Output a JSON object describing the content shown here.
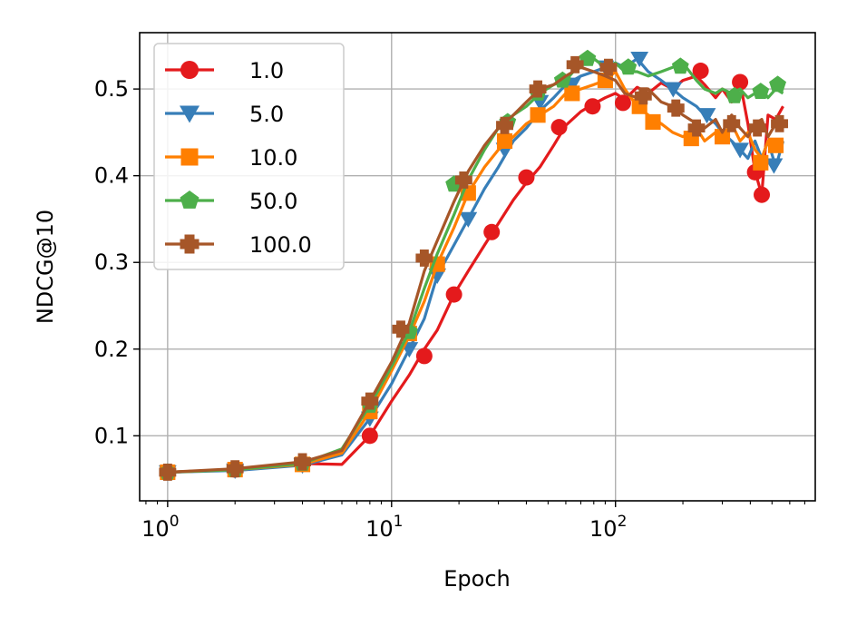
{
  "chart_data": {
    "type": "line",
    "xlabel": "Epoch",
    "ylabel": "NDCG@10",
    "xscale": "log",
    "xlim": [
      0.75,
      780
    ],
    "ylim": [
      0.025,
      0.565
    ],
    "x_ticks": [
      {
        "value": 1,
        "base": "10",
        "exp": "0"
      },
      {
        "value": 10,
        "base": "10",
        "exp": "1"
      },
      {
        "value": 100,
        "base": "10",
        "exp": "2"
      }
    ],
    "y_ticks": [
      {
        "value": 0.1,
        "label": "0.1"
      },
      {
        "value": 0.2,
        "label": "0.2"
      },
      {
        "value": 0.3,
        "label": "0.3"
      },
      {
        "value": 0.4,
        "label": "0.4"
      },
      {
        "value": 0.5,
        "label": "0.5"
      }
    ],
    "grid": true,
    "legend_position": "top-left",
    "series": [
      {
        "name": "1.0",
        "color": "#e41a1c",
        "marker": "circle",
        "points": [
          [
            1,
            0.058
          ],
          [
            2,
            0.061
          ],
          [
            4,
            0.068
          ],
          [
            6,
            0.067
          ],
          [
            8,
            0.1
          ],
          [
            10,
            0.14
          ],
          [
            12,
            0.17
          ],
          [
            14,
            0.2
          ],
          [
            16,
            0.222
          ],
          [
            19,
            0.263
          ],
          [
            22,
            0.29
          ],
          [
            26,
            0.32
          ],
          [
            30,
            0.345
          ],
          [
            35,
            0.372
          ],
          [
            40,
            0.392
          ],
          [
            46,
            0.41
          ],
          [
            53,
            0.435
          ],
          [
            60,
            0.458
          ],
          [
            70,
            0.474
          ],
          [
            80,
            0.483
          ],
          [
            90,
            0.49
          ],
          [
            100,
            0.495
          ],
          [
            110,
            0.488
          ],
          [
            125,
            0.502
          ],
          [
            140,
            0.495
          ],
          [
            160,
            0.507
          ],
          [
            180,
            0.5
          ],
          [
            200,
            0.51
          ],
          [
            230,
            0.515
          ],
          [
            250,
            0.505
          ],
          [
            280,
            0.49
          ],
          [
            300,
            0.5
          ],
          [
            330,
            0.485
          ],
          [
            360,
            0.508
          ],
          [
            390,
            0.46
          ],
          [
            420,
            0.405
          ],
          [
            450,
            0.378
          ],
          [
            480,
            0.47
          ],
          [
            520,
            0.465
          ],
          [
            560,
            0.48
          ]
        ],
        "marked": [
          [
            1,
            0.058
          ],
          [
            2,
            0.061
          ],
          [
            4,
            0.068
          ],
          [
            8,
            0.1
          ],
          [
            14,
            0.192
          ],
          [
            19,
            0.263
          ],
          [
            28,
            0.335
          ],
          [
            40,
            0.398
          ],
          [
            56,
            0.456
          ],
          [
            79,
            0.48
          ],
          [
            108,
            0.484
          ],
          [
            240,
            0.521
          ],
          [
            360,
            0.508
          ],
          [
            420,
            0.404
          ],
          [
            450,
            0.378
          ]
        ]
      },
      {
        "name": "5.0",
        "color": "#377eb8",
        "marker": "triangle-down",
        "points": [
          [
            1,
            0.058
          ],
          [
            2,
            0.06
          ],
          [
            4,
            0.066
          ],
          [
            6,
            0.078
          ],
          [
            8,
            0.12
          ],
          [
            10,
            0.16
          ],
          [
            12,
            0.2
          ],
          [
            14,
            0.235
          ],
          [
            16,
            0.285
          ],
          [
            19,
            0.32
          ],
          [
            22,
            0.35
          ],
          [
            26,
            0.385
          ],
          [
            30,
            0.41
          ],
          [
            35,
            0.44
          ],
          [
            40,
            0.455
          ],
          [
            46,
            0.475
          ],
          [
            53,
            0.49
          ],
          [
            60,
            0.505
          ],
          [
            70,
            0.515
          ],
          [
            80,
            0.52
          ],
          [
            90,
            0.525
          ],
          [
            100,
            0.53
          ],
          [
            110,
            0.525
          ],
          [
            125,
            0.535
          ],
          [
            140,
            0.52
          ],
          [
            160,
            0.51
          ],
          [
            180,
            0.5
          ],
          [
            200,
            0.49
          ],
          [
            230,
            0.48
          ],
          [
            250,
            0.47
          ],
          [
            280,
            0.46
          ],
          [
            300,
            0.45
          ],
          [
            330,
            0.44
          ],
          [
            360,
            0.43
          ],
          [
            390,
            0.42
          ],
          [
            420,
            0.44
          ],
          [
            450,
            0.42
          ],
          [
            480,
            0.44
          ],
          [
            520,
            0.41
          ],
          [
            560,
            0.44
          ]
        ],
        "marked": [
          [
            1,
            0.058
          ],
          [
            2,
            0.06
          ],
          [
            4,
            0.066
          ],
          [
            8,
            0.12
          ],
          [
            12,
            0.2
          ],
          [
            16,
            0.285
          ],
          [
            22,
            0.35
          ],
          [
            32,
            0.43
          ],
          [
            46,
            0.485
          ],
          [
            64,
            0.505
          ],
          [
            90,
            0.525
          ],
          [
            128,
            0.535
          ],
          [
            181,
            0.5
          ],
          [
            256,
            0.47
          ],
          [
            360,
            0.43
          ],
          [
            510,
            0.412
          ]
        ]
      },
      {
        "name": "10.0",
        "color": "#ff7f00",
        "marker": "square",
        "points": [
          [
            1,
            0.058
          ],
          [
            2,
            0.061
          ],
          [
            4,
            0.067
          ],
          [
            6,
            0.08
          ],
          [
            8,
            0.128
          ],
          [
            10,
            0.175
          ],
          [
            12,
            0.215
          ],
          [
            14,
            0.255
          ],
          [
            16,
            0.298
          ],
          [
            19,
            0.34
          ],
          [
            22,
            0.38
          ],
          [
            26,
            0.41
          ],
          [
            30,
            0.43
          ],
          [
            35,
            0.445
          ],
          [
            40,
            0.46
          ],
          [
            46,
            0.47
          ],
          [
            53,
            0.48
          ],
          [
            60,
            0.495
          ],
          [
            70,
            0.5
          ],
          [
            80,
            0.505
          ],
          [
            90,
            0.51
          ],
          [
            100,
            0.52
          ],
          [
            110,
            0.5
          ],
          [
            125,
            0.48
          ],
          [
            140,
            0.47
          ],
          [
            160,
            0.46
          ],
          [
            180,
            0.45
          ],
          [
            200,
            0.445
          ],
          [
            230,
            0.455
          ],
          [
            250,
            0.44
          ],
          [
            280,
            0.45
          ],
          [
            300,
            0.445
          ],
          [
            330,
            0.46
          ],
          [
            360,
            0.44
          ],
          [
            390,
            0.45
          ],
          [
            420,
            0.43
          ],
          [
            450,
            0.42
          ],
          [
            480,
            0.44
          ],
          [
            520,
            0.43
          ],
          [
            560,
            0.44
          ]
        ],
        "marked": [
          [
            1,
            0.058
          ],
          [
            2,
            0.061
          ],
          [
            4,
            0.067
          ],
          [
            8,
            0.128
          ],
          [
            12,
            0.218
          ],
          [
            16,
            0.298
          ],
          [
            22,
            0.38
          ],
          [
            32,
            0.44
          ],
          [
            45,
            0.47
          ],
          [
            64,
            0.495
          ],
          [
            90,
            0.51
          ],
          [
            128,
            0.48
          ],
          [
            147,
            0.462
          ],
          [
            218,
            0.443
          ],
          [
            300,
            0.445
          ],
          [
            445,
            0.415
          ],
          [
            520,
            0.435
          ]
        ]
      },
      {
        "name": "50.0",
        "color": "#4daf4a",
        "marker": "pentagon",
        "points": [
          [
            1,
            0.058
          ],
          [
            2,
            0.061
          ],
          [
            4,
            0.068
          ],
          [
            6,
            0.085
          ],
          [
            8,
            0.135
          ],
          [
            10,
            0.18
          ],
          [
            12,
            0.22
          ],
          [
            14,
            0.27
          ],
          [
            16,
            0.31
          ],
          [
            19,
            0.355
          ],
          [
            22,
            0.395
          ],
          [
            26,
            0.43
          ],
          [
            30,
            0.455
          ],
          [
            35,
            0.47
          ],
          [
            40,
            0.48
          ],
          [
            46,
            0.495
          ],
          [
            53,
            0.505
          ],
          [
            60,
            0.51
          ],
          [
            70,
            0.53
          ],
          [
            80,
            0.535
          ],
          [
            90,
            0.525
          ],
          [
            100,
            0.53
          ],
          [
            110,
            0.52
          ],
          [
            125,
            0.52
          ],
          [
            140,
            0.515
          ],
          [
            160,
            0.52
          ],
          [
            180,
            0.525
          ],
          [
            200,
            0.53
          ],
          [
            230,
            0.51
          ],
          [
            250,
            0.5
          ],
          [
            280,
            0.495
          ],
          [
            300,
            0.5
          ],
          [
            330,
            0.495
          ],
          [
            360,
            0.5
          ],
          [
            390,
            0.49
          ],
          [
            420,
            0.495
          ],
          [
            450,
            0.5
          ],
          [
            480,
            0.49
          ],
          [
            520,
            0.5
          ],
          [
            560,
            0.495
          ]
        ],
        "marked": [
          [
            1,
            0.058
          ],
          [
            2,
            0.061
          ],
          [
            4,
            0.068
          ],
          [
            8,
            0.135
          ],
          [
            12,
            0.22
          ],
          [
            19,
            0.39
          ],
          [
            33,
            0.462
          ],
          [
            45,
            0.495
          ],
          [
            58,
            0.51
          ],
          [
            75,
            0.535
          ],
          [
            114,
            0.525
          ],
          [
            195,
            0.526
          ],
          [
            340,
            0.492
          ],
          [
            445,
            0.497
          ],
          [
            530,
            0.505
          ]
        ]
      },
      {
        "name": "100.0",
        "color": "#a65628",
        "marker": "plus",
        "points": [
          [
            1,
            0.058
          ],
          [
            2,
            0.062
          ],
          [
            4,
            0.07
          ],
          [
            6,
            0.083
          ],
          [
            8,
            0.14
          ],
          [
            10,
            0.185
          ],
          [
            12,
            0.23
          ],
          [
            14,
            0.29
          ],
          [
            16,
            0.325
          ],
          [
            19,
            0.37
          ],
          [
            22,
            0.405
          ],
          [
            26,
            0.435
          ],
          [
            30,
            0.455
          ],
          [
            35,
            0.47
          ],
          [
            40,
            0.485
          ],
          [
            46,
            0.5
          ],
          [
            53,
            0.505
          ],
          [
            60,
            0.515
          ],
          [
            70,
            0.525
          ],
          [
            80,
            0.52
          ],
          [
            90,
            0.515
          ],
          [
            100,
            0.51
          ],
          [
            110,
            0.495
          ],
          [
            125,
            0.49
          ],
          [
            140,
            0.5
          ],
          [
            160,
            0.485
          ],
          [
            180,
            0.48
          ],
          [
            200,
            0.47
          ],
          [
            230,
            0.46
          ],
          [
            250,
            0.455
          ],
          [
            280,
            0.465
          ],
          [
            300,
            0.45
          ],
          [
            330,
            0.47
          ],
          [
            360,
            0.455
          ],
          [
            390,
            0.445
          ],
          [
            420,
            0.46
          ],
          [
            450,
            0.465
          ],
          [
            480,
            0.445
          ],
          [
            520,
            0.46
          ],
          [
            560,
            0.455
          ]
        ],
        "marked": [
          [
            1,
            0.058
          ],
          [
            2,
            0.062
          ],
          [
            4,
            0.07
          ],
          [
            8,
            0.14
          ],
          [
            11,
            0.223
          ],
          [
            14,
            0.305
          ],
          [
            21,
            0.395
          ],
          [
            32,
            0.458
          ],
          [
            45,
            0.5
          ],
          [
            66,
            0.528
          ],
          [
            93,
            0.525
          ],
          [
            133,
            0.492
          ],
          [
            186,
            0.478
          ],
          [
            230,
            0.455
          ],
          [
            330,
            0.46
          ],
          [
            430,
            0.455
          ],
          [
            540,
            0.46
          ]
        ]
      }
    ]
  }
}
